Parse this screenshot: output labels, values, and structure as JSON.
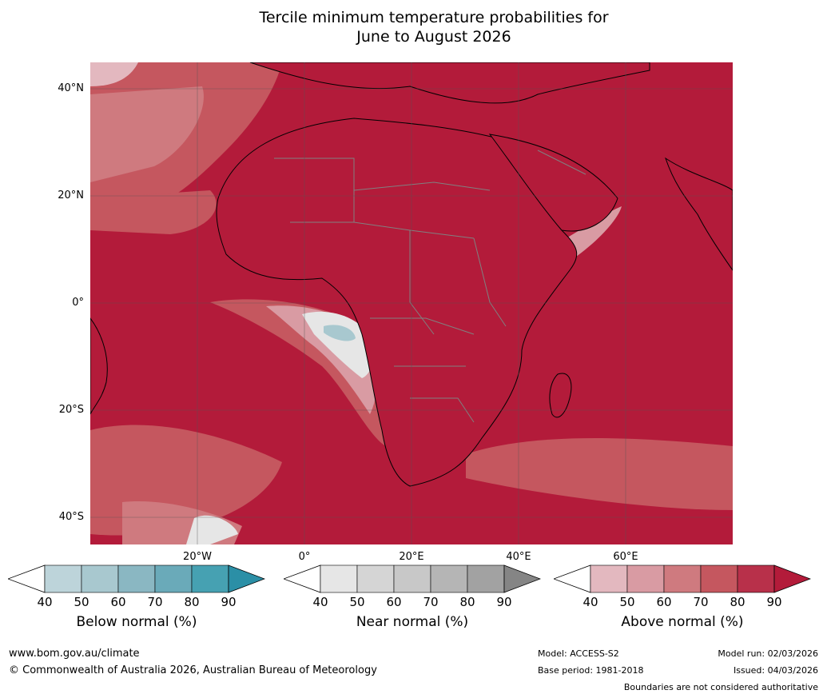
{
  "title": {
    "line1": "Tercile minimum temperature probabilities for",
    "line2": "June to August 2026"
  },
  "map": {
    "latitude_labels": [
      "40°N",
      "20°N",
      "0°",
      "20°S",
      "40°S"
    ],
    "longitude_labels": [
      "20°W",
      "0°",
      "20°E",
      "40°E",
      "60°E"
    ],
    "colors": {
      "ocean_base": "#b31b3a",
      "above_80": "#b8304a",
      "above_70": "#c5575f",
      "above_60": "#cf7a7f",
      "above_50": "#d99ba3",
      "above_40": "#e3b8bf",
      "near_40": "#e6e6e6",
      "below_40": "#bdd4da",
      "below_50": "#a8c8cf",
      "coast": "#000000",
      "border": "#808080",
      "grid": "#555555"
    }
  },
  "colorbars": [
    {
      "name": "below",
      "label": "Below normal (%)",
      "ticks": [
        "40",
        "50",
        "60",
        "70",
        "80",
        "90"
      ],
      "colors": [
        "#ffffff",
        "#bdd4da",
        "#a8c8cf",
        "#8ab7c2",
        "#6aaab9",
        "#46a1b2",
        "#2b8fa6"
      ]
    },
    {
      "name": "near",
      "label": "Near normal (%)",
      "ticks": [
        "40",
        "50",
        "60",
        "70",
        "80",
        "90"
      ],
      "colors": [
        "#ffffff",
        "#e6e6e6",
        "#d5d5d5",
        "#c8c8c8",
        "#b5b5b5",
        "#a2a2a2",
        "#858585"
      ]
    },
    {
      "name": "above",
      "label": "Above normal (%)",
      "ticks": [
        "40",
        "50",
        "60",
        "70",
        "80",
        "90"
      ],
      "colors": [
        "#ffffff",
        "#e3b8bf",
        "#d99ba3",
        "#cf7a7f",
        "#c5575f",
        "#b8304a",
        "#b31b3a"
      ]
    }
  ],
  "footer": {
    "website": "www.bom.gov.au/climate",
    "copyright": "© Commonwealth of Australia 2026, Australian Bureau of Meteorology",
    "model": "Model: ACCESS-S2",
    "base_period": "Base period: 1981-2018",
    "model_run": "Model run: 02/03/2026",
    "issued": "Issued: 04/03/2026",
    "disclaimer": "Boundaries are not considered authoritative"
  }
}
